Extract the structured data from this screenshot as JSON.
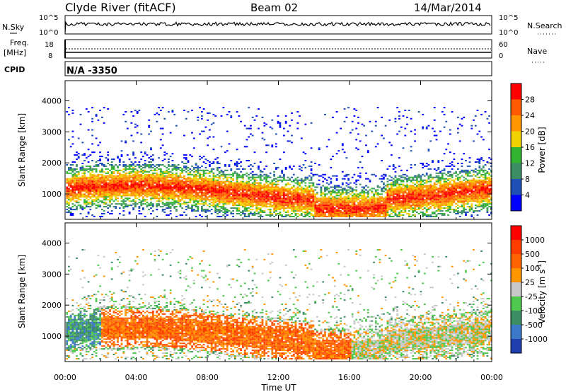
{
  "header": {
    "site": "Clyde River (fitACF)",
    "beam": "Beam 02",
    "date": "14/Mar/2014"
  },
  "strip1": {
    "left_label": "N.Sky",
    "right_label": "N.Search",
    "left_ticks": [
      "10^5",
      "10^0"
    ],
    "right_ticks": [
      "10^5",
      "10^0"
    ]
  },
  "strip2": {
    "left_label_top": "Freq.",
    "left_label_bottom": "[MHz]",
    "right_label": "Nave",
    "left_ticks": [
      "18",
      "8"
    ],
    "right_ticks": [
      "60",
      "0"
    ]
  },
  "cpid": {
    "label": "CPID",
    "value": "N/A -3350"
  },
  "chart_data": [
    {
      "type": "heatmap",
      "name": "power-panel",
      "ylabel": "Slant Range [km]",
      "xlabel": "",
      "x_ticks": [
        "00:00",
        "04:00",
        "08:00",
        "12:00",
        "16:00",
        "20:00",
        "00:00"
      ],
      "y_ticks": [
        "1000",
        "2000",
        "3000",
        "4000"
      ],
      "x_range_hours": [
        0,
        24
      ],
      "y_range_km": [
        180,
        4650
      ],
      "colorbar": {
        "label": "Power [dB]",
        "ticks": [
          "4",
          "8",
          "12",
          "16",
          "20",
          "24",
          "28"
        ],
        "colors": [
          "#0000ff",
          "#1e4fb4",
          "#3c8c64",
          "#32b432",
          "#f0d200",
          "#ff9600",
          "#ff5a00",
          "#ff0000"
        ]
      }
    },
    {
      "type": "heatmap",
      "name": "velocity-panel",
      "ylabel": "Slant Range [km]",
      "xlabel": "Time UT",
      "x_ticks": [
        "00:00",
        "04:00",
        "08:00",
        "12:00",
        "16:00",
        "20:00",
        "00:00"
      ],
      "y_ticks": [
        "1000",
        "2000",
        "3000",
        "4000"
      ],
      "x_range_hours": [
        0,
        24
      ],
      "y_range_km": [
        180,
        4650
      ],
      "colorbar": {
        "label": "Velocity [m s",
        "label_superscript": "-1",
        "label_close": "]",
        "ticks": [
          "1000",
          "500",
          "100",
          "25",
          "-25",
          "-100",
          "-500",
          "-1000"
        ],
        "colors": [
          "#2040b0",
          "#3c78c8",
          "#3c8c64",
          "#50c850",
          "#c8c8c8",
          "#ff9600",
          "#ff6400",
          "#ff3c00",
          "#ff0000"
        ]
      }
    }
  ]
}
